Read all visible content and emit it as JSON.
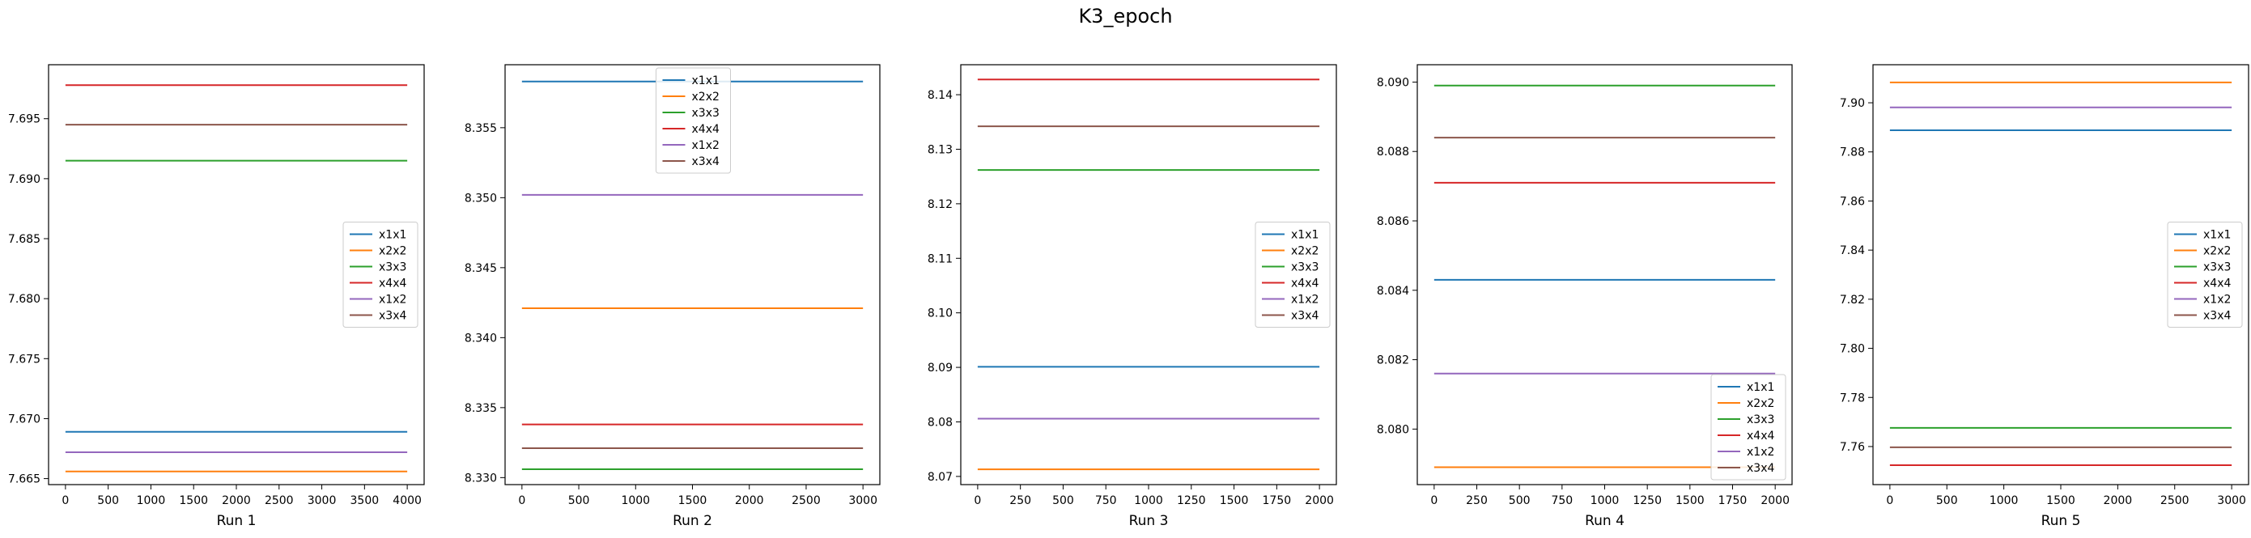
{
  "suptitle": "K3_epoch",
  "colors": {
    "x1x1": "#1f77b4",
    "x2x2": "#ff7f0e",
    "x3x3": "#2ca02c",
    "x4x4": "#d62728",
    "x1x2": "#9467bd",
    "x3x4": "#8c564b"
  },
  "chart_data": [
    {
      "type": "line",
      "title": "",
      "xlabel": "Run 1",
      "ylabel": "",
      "xlim": [
        0,
        4000
      ],
      "ylim": [
        7.6645,
        7.6995
      ],
      "xticks": [
        0,
        500,
        1000,
        1500,
        2000,
        2500,
        3000,
        3500,
        4000
      ],
      "xtick_labels": [
        "0",
        "500",
        "1000",
        "1500",
        "2000",
        "2500",
        "3000",
        "3500",
        "4000"
      ],
      "yticks": [
        7.665,
        7.67,
        7.675,
        7.68,
        7.685,
        7.69,
        7.695
      ],
      "ytick_labels": [
        "7.665",
        "7.670",
        "7.675",
        "7.680",
        "7.685",
        "7.690",
        "7.695"
      ],
      "legend": "center-right",
      "series": [
        {
          "name": "x1x1",
          "x": [
            0,
            4000
          ],
          "values": [
            7.6689,
            7.6689
          ]
        },
        {
          "name": "x2x2",
          "x": [
            0,
            4000
          ],
          "values": [
            7.6656,
            7.6656
          ]
        },
        {
          "name": "x3x3",
          "x": [
            0,
            4000
          ],
          "values": [
            7.6915,
            7.6915
          ]
        },
        {
          "name": "x4x4",
          "x": [
            0,
            4000
          ],
          "values": [
            7.6978,
            7.6978
          ]
        },
        {
          "name": "x1x2",
          "x": [
            0,
            4000
          ],
          "values": [
            7.6672,
            7.6672
          ]
        },
        {
          "name": "x3x4",
          "x": [
            0,
            4000
          ],
          "values": [
            7.6945,
            7.6945
          ]
        }
      ]
    },
    {
      "type": "line",
      "title": "",
      "xlabel": "Run 2",
      "ylabel": "",
      "xlim": [
        0,
        3000
      ],
      "ylim": [
        8.3295,
        8.3595
      ],
      "xticks": [
        0,
        500,
        1000,
        1500,
        2000,
        2500,
        3000
      ],
      "xtick_labels": [
        "0",
        "500",
        "1000",
        "1500",
        "2000",
        "2500",
        "3000"
      ],
      "yticks": [
        8.33,
        8.335,
        8.34,
        8.345,
        8.35,
        8.355
      ],
      "ytick_labels": [
        "8.330",
        "8.335",
        "8.340",
        "8.345",
        "8.350",
        "8.355"
      ],
      "legend": "upper-center",
      "series": [
        {
          "name": "x1x1",
          "x": [
            0,
            3000
          ],
          "values": [
            8.3583,
            8.3583
          ]
        },
        {
          "name": "x2x2",
          "x": [
            0,
            3000
          ],
          "values": [
            8.3421,
            8.3421
          ]
        },
        {
          "name": "x3x3",
          "x": [
            0,
            3000
          ],
          "values": [
            8.3306,
            8.3306
          ]
        },
        {
          "name": "x4x4",
          "x": [
            0,
            3000
          ],
          "values": [
            8.3338,
            8.3338
          ]
        },
        {
          "name": "x1x2",
          "x": [
            0,
            3000
          ],
          "values": [
            8.3502,
            8.3502
          ]
        },
        {
          "name": "x3x4",
          "x": [
            0,
            3000
          ],
          "values": [
            8.3321,
            8.3321
          ]
        }
      ]
    },
    {
      "type": "line",
      "title": "",
      "xlabel": "Run 3",
      "ylabel": "",
      "xlim": [
        0,
        2000
      ],
      "ylim": [
        8.0685,
        8.1455
      ],
      "xticks": [
        0,
        250,
        500,
        750,
        1000,
        1250,
        1500,
        1750,
        2000
      ],
      "xtick_labels": [
        "0",
        "250",
        "500",
        "750",
        "1000",
        "1250",
        "1500",
        "1750",
        "2000"
      ],
      "yticks": [
        8.07,
        8.08,
        8.09,
        8.1,
        8.11,
        8.12,
        8.13,
        8.14
      ],
      "ytick_labels": [
        "8.07",
        "8.08",
        "8.09",
        "8.10",
        "8.11",
        "8.12",
        "8.13",
        "8.14"
      ],
      "legend": "center-right",
      "series": [
        {
          "name": "x1x1",
          "x": [
            0,
            2000
          ],
          "values": [
            8.0901,
            8.0901
          ]
        },
        {
          "name": "x2x2",
          "x": [
            0,
            2000
          ],
          "values": [
            8.0713,
            8.0713
          ]
        },
        {
          "name": "x3x3",
          "x": [
            0,
            2000
          ],
          "values": [
            8.1262,
            8.1262
          ]
        },
        {
          "name": "x4x4",
          "x": [
            0,
            2000
          ],
          "values": [
            8.1428,
            8.1428
          ]
        },
        {
          "name": "x1x2",
          "x": [
            0,
            2000
          ],
          "values": [
            8.0806,
            8.0806
          ]
        },
        {
          "name": "x3x4",
          "x": [
            0,
            2000
          ],
          "values": [
            8.1342,
            8.1342
          ]
        }
      ]
    },
    {
      "type": "line",
      "title": "",
      "xlabel": "Run 4",
      "ylabel": "",
      "xlim": [
        0,
        2000
      ],
      "ylim": [
        8.0784,
        8.0905
      ],
      "xticks": [
        0,
        250,
        500,
        750,
        1000,
        1250,
        1500,
        1750,
        2000
      ],
      "xtick_labels": [
        "0",
        "250",
        "500",
        "750",
        "1000",
        "1250",
        "1500",
        "1750",
        "2000"
      ],
      "yticks": [
        8.08,
        8.082,
        8.084,
        8.086,
        8.088,
        8.09
      ],
      "ytick_labels": [
        "8.080",
        "8.082",
        "8.084",
        "8.086",
        "8.088",
        "8.090"
      ],
      "legend": "lower-right",
      "series": [
        {
          "name": "x1x1",
          "x": [
            0,
            2000
          ],
          "values": [
            8.0843,
            8.0843
          ]
        },
        {
          "name": "x2x2",
          "x": [
            0,
            2000
          ],
          "values": [
            8.0789,
            8.0789
          ]
        },
        {
          "name": "x3x3",
          "x": [
            0,
            2000
          ],
          "values": [
            8.0899,
            8.0899
          ]
        },
        {
          "name": "x4x4",
          "x": [
            0,
            2000
          ],
          "values": [
            8.0871,
            8.0871
          ]
        },
        {
          "name": "x1x2",
          "x": [
            0,
            2000
          ],
          "values": [
            8.0816,
            8.0816
          ]
        },
        {
          "name": "x3x4",
          "x": [
            0,
            2000
          ],
          "values": [
            8.0884,
            8.0884
          ]
        }
      ]
    },
    {
      "type": "line",
      "title": "",
      "xlabel": "Run 5",
      "ylabel": "",
      "xlim": [
        0,
        3000
      ],
      "ylim": [
        7.7445,
        7.9155
      ],
      "xticks": [
        0,
        500,
        1000,
        1500,
        2000,
        2500,
        3000
      ],
      "xtick_labels": [
        "0",
        "500",
        "1000",
        "1500",
        "2000",
        "2500",
        "3000"
      ],
      "yticks": [
        7.76,
        7.78,
        7.8,
        7.82,
        7.84,
        7.86,
        7.88,
        7.9
      ],
      "ytick_labels": [
        "7.76",
        "7.78",
        "7.80",
        "7.82",
        "7.84",
        "7.86",
        "7.88",
        "7.90"
      ],
      "legend": "center-right",
      "series": [
        {
          "name": "x1x1",
          "x": [
            0,
            3000
          ],
          "values": [
            7.8888,
            7.8888
          ]
        },
        {
          "name": "x2x2",
          "x": [
            0,
            3000
          ],
          "values": [
            7.9083,
            7.9083
          ]
        },
        {
          "name": "x3x3",
          "x": [
            0,
            3000
          ],
          "values": [
            7.7676,
            7.7676
          ]
        },
        {
          "name": "x4x4",
          "x": [
            0,
            3000
          ],
          "values": [
            7.7524,
            7.7524
          ]
        },
        {
          "name": "x1x2",
          "x": [
            0,
            3000
          ],
          "values": [
            7.8981,
            7.8981
          ]
        },
        {
          "name": "x3x4",
          "x": [
            0,
            3000
          ],
          "values": [
            7.7597,
            7.7597
          ]
        }
      ]
    }
  ]
}
